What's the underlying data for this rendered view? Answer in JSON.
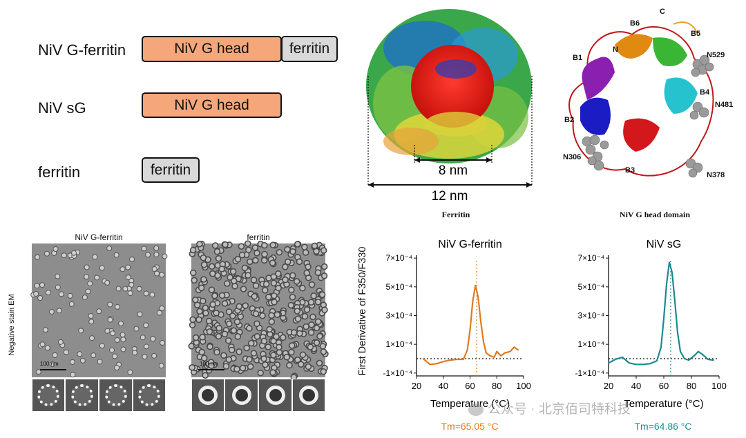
{
  "constructs": {
    "row1_label": "NiV G-ferritin",
    "row2_label": "NiV sG",
    "row3_label": "ferritin",
    "head_text": "NiV G head",
    "ferritin_text": "ferritin"
  },
  "structures": {
    "ferritin_inner": "8 nm",
    "ferritin_outer": "12 nm",
    "ferritin_caption": "Ferritin",
    "head_caption": "NiV G head domain",
    "head_labels": [
      "C",
      "B6",
      "B5",
      "B1",
      "N",
      "N529",
      "B4",
      "N481",
      "B2",
      "N306",
      "B3",
      "N378"
    ]
  },
  "em": {
    "side_label": "Negative stain EM",
    "left_title": "NiV G-ferritin",
    "right_title": "ferritin",
    "scale_left": "100 nm",
    "scale_right": "100 nm"
  },
  "charts": {
    "ylabel": "First Derivative of F350/F330",
    "xlabel_left": "Temperature (°C)",
    "xlabel_right": "Temperature (°C)",
    "tm_left": "Tm=65.05 °C",
    "tm_right": "Tm=64.86 °C"
  },
  "watermark": "公众号 · 北京佰司特科技",
  "chart_data": [
    {
      "type": "line",
      "title": "NiV G-ferritin",
      "xlabel": "Temperature (°C)",
      "ylabel": "First Derivative of F350/F330",
      "xlim": [
        20,
        100
      ],
      "ylim": [
        -0.00012,
        0.00072
      ],
      "xticks": [
        20,
        40,
        60,
        80,
        100
      ],
      "yticks": [
        "7×10⁻⁴",
        "5×10⁻⁴",
        "3×10⁻⁴",
        "1×10⁻⁴",
        "-1×10⁻⁴"
      ],
      "ytick_values": [
        0.0007,
        0.0005,
        0.0003,
        0.0001,
        -0.0001
      ],
      "color": "#e07a1e",
      "tm_line_x": 65,
      "baseline_y": 0,
      "x": [
        25,
        30,
        35,
        40,
        45,
        50,
        55,
        58,
        60,
        62,
        64,
        66,
        68,
        70,
        72,
        75,
        78,
        80,
        83,
        86,
        90,
        93,
        96
      ],
      "y": [
        0.0,
        -4e-05,
        -3.5e-05,
        -2e-05,
        -1e-05,
        -5e-06,
        -5e-06,
        6e-05,
        0.0002,
        0.0004,
        0.00051,
        0.00043,
        0.00026,
        0.00012,
        4e-05,
        2e-05,
        1e-05,
        5e-05,
        2e-05,
        4e-05,
        5e-05,
        8e-05,
        6e-05
      ]
    },
    {
      "type": "line",
      "title": "NiV sG",
      "xlabel": "Temperature (°C)",
      "ylabel": "",
      "xlim": [
        20,
        100
      ],
      "ylim": [
        -0.00012,
        0.00072
      ],
      "xticks": [
        20,
        40,
        60,
        80,
        100
      ],
      "yticks": [
        "7×10⁻⁴",
        "5×10⁻⁴",
        "3×10⁻⁴",
        "1×10⁻⁴",
        "-1×10⁻⁴"
      ],
      "ytick_values": [
        0.0007,
        0.0005,
        0.0003,
        0.0001,
        -0.0001
      ],
      "color": "#1a8a8e",
      "tm_line_x": 65,
      "baseline_y": 0,
      "x": [
        20,
        25,
        30,
        35,
        40,
        45,
        50,
        55,
        58,
        60,
        62,
        64,
        66,
        68,
        70,
        72,
        75,
        78,
        82,
        85,
        88,
        92,
        96
      ],
      "y": [
        -3e-05,
        -5e-06,
        1e-05,
        -3e-05,
        -4e-05,
        -4e-05,
        -3.5e-05,
        -1.5e-05,
        8e-05,
        0.00028,
        0.00052,
        0.00067,
        0.0006,
        0.0004,
        0.00018,
        5e-05,
        0.0,
        -1e-05,
        2e-05,
        5e-05,
        3e-05,
        -5e-06,
        -1e-05
      ]
    }
  ]
}
